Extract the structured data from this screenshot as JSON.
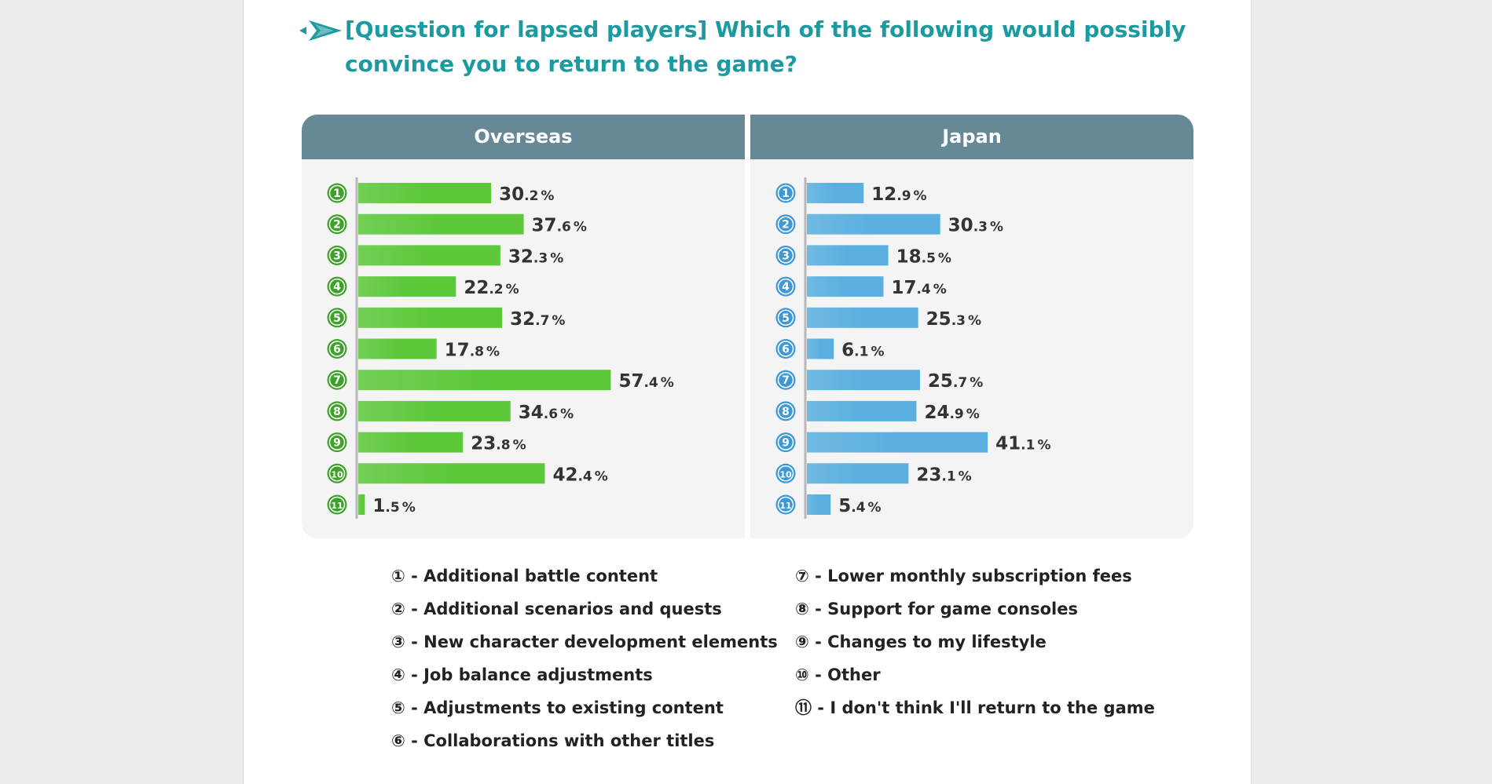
{
  "title": "[Question for lapsed players] Which of the following would possibly convince you to return to the game?",
  "colors": {
    "title": "#1d9aa0",
    "header": "#668897",
    "overseas_bar": "#5cc83a",
    "overseas_badge": "#3fa12b",
    "japan_bar": "#5aafe0",
    "japan_badge": "#3d98d4"
  },
  "chart_data": [
    {
      "type": "bar",
      "orientation": "horizontal",
      "title": "Overseas",
      "categories": [
        "1",
        "2",
        "3",
        "4",
        "5",
        "6",
        "7",
        "8",
        "9",
        "10",
        "11"
      ],
      "values": [
        30.2,
        37.6,
        32.3,
        22.2,
        32.7,
        17.8,
        57.4,
        34.6,
        23.8,
        42.4,
        1.5
      ],
      "unit": "%",
      "xlim": [
        0,
        60
      ]
    },
    {
      "type": "bar",
      "orientation": "horizontal",
      "title": "Japan",
      "categories": [
        "1",
        "2",
        "3",
        "4",
        "5",
        "6",
        "7",
        "8",
        "9",
        "10",
        "11"
      ],
      "values": [
        12.9,
        30.3,
        18.5,
        17.4,
        25.3,
        6.1,
        25.7,
        24.9,
        41.1,
        23.1,
        5.4
      ],
      "unit": "%",
      "xlim": [
        0,
        60
      ]
    }
  ],
  "legend": {
    "column1": [
      "① - Additional battle content",
      "② - Additional scenarios and quests",
      "③ - New character development elements",
      "④ - Job balance adjustments",
      "⑤ - Adjustments to existing content",
      "⑥ - Collaborations with other titles"
    ],
    "column2": [
      "⑦ - Lower monthly subscription fees",
      "⑧ - Support for game consoles",
      "⑨ - Changes to my lifestyle",
      "⑩ - Other",
      "⑪ - I don't think I'll return to the game"
    ]
  }
}
